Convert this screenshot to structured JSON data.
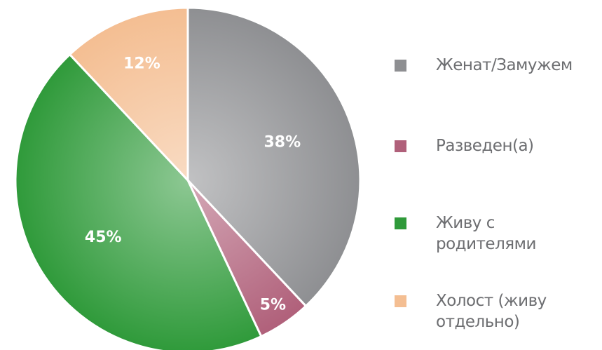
{
  "chart_data": {
    "type": "pie",
    "categories": [
      "Женат/Замужем",
      "Разведен(а)",
      "Живу с родителями",
      "Холост (живу отдельно)"
    ],
    "values": [
      38,
      5,
      45,
      12
    ],
    "value_labels": [
      "38%",
      "5%",
      "45%",
      "12%"
    ],
    "colors": [
      "#8e8f92",
      "#b0607a",
      "#2f9a3a",
      "#f4be92"
    ],
    "legend": "right"
  }
}
